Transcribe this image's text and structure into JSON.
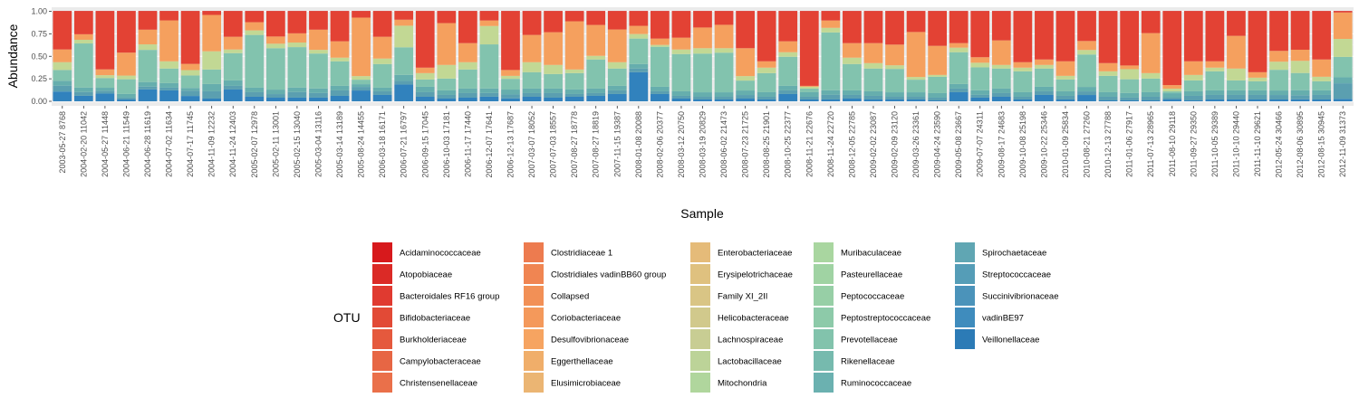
{
  "chart_data": {
    "type": "bar",
    "stacked": true,
    "xlabel": "Sample",
    "ylabel": "Abundance",
    "ylim": [
      0,
      1
    ],
    "yticks": [
      "0.00",
      "0.25",
      "0.50",
      "0.75",
      "1.00"
    ],
    "legend_title": "OTU",
    "legend_position": "bottom",
    "categories": [
      "2003-05-27 8768",
      "2004-02-20 11042",
      "2004-05-27 11448",
      "2004-06-21 11549",
      "2004-06-28 11619",
      "2004-07-02 11634",
      "2004-07-17 11745",
      "2004-11-09 12232",
      "2004-11-24 12403",
      "2005-02-07 12978",
      "2005-02-11 13001",
      "2005-02-15 13040",
      "2005-03-04 13116",
      "2005-03-14 13189",
      "2005-08-24 14455",
      "2006-03-18 16171",
      "2006-07-21 16797",
      "2006-09-15 17045",
      "2006-10-03 17181",
      "2006-11-17 17440",
      "2006-12-07 17641",
      "2006-12-13 17687",
      "2007-03-07 18052",
      "2007-07-03 18557",
      "2007-08-27 18778",
      "2007-08-27 18819",
      "2007-11-15 19387",
      "2008-01-08 20088",
      "2008-02-06 20377",
      "2008-03-12 20750",
      "2008-03-19 20829",
      "2008-06-02 21473",
      "2008-07-23 21725",
      "2008-08-25 21901",
      "2008-10-25 22377",
      "2008-11-21 22676",
      "2008-11-24 22720",
      "2008-12-05 22785",
      "2009-02-02 23087",
      "2009-02-09 23120",
      "2009-03-26 23361",
      "2009-04-24 23590",
      "2009-05-08 23667",
      "2009-07-07 24311",
      "2009-08-17 24683",
      "2009-10-08 25198",
      "2009-10-22 25346",
      "2010-01-09 25834",
      "2010-08-21 27260",
      "2010-12-13 27788",
      "2011-01-06 27917",
      "2011-07-13 28965",
      "2011-08-10 29118",
      "2011-09-27 29350",
      "2011-10-05 29389",
      "2011-10-10 29440",
      "2011-11-10 29621",
      "2012-05-24 30466",
      "2012-08-06 30895",
      "2012-08-15 30945",
      "2012-11-09 31373"
    ],
    "stack_order": [
      "veillonellaceae",
      "bacteroidales",
      "ruminococcaceae",
      "prevotellaceae",
      "lachnospiraceae",
      "collapsed",
      "bacteroidales_rf16"
    ],
    "series": [
      {
        "key": "veillonellaceae",
        "name": "Veillonellaceae",
        "color": "#3182bd",
        "values": [
          0.1,
          0.06,
          0.08,
          0.02,
          0.13,
          0.12,
          0.06,
          0.03,
          0.13,
          0.05,
          0.04,
          0.04,
          0.04,
          0.06,
          0.12,
          0.07,
          0.14,
          0.05,
          0.03,
          0.04,
          0.05,
          0.03,
          0.05,
          0.04,
          0.05,
          0.06,
          0.08,
          0.32,
          0.08,
          0.03,
          0.02,
          0.02,
          0.03,
          0.02,
          0.08,
          0.02,
          0.02,
          0.03,
          0.02,
          0.02,
          0.02,
          0.01,
          0.1,
          0.04,
          0.05,
          0.02,
          0.07,
          0.02,
          0.07,
          0.01,
          0.01,
          0.01,
          0.02,
          0.01,
          0.02,
          0.02,
          0.02,
          0.02,
          0.02,
          0.02,
          0.02
        ]
      },
      {
        "key": "bacteroidales",
        "name": "Spirochaetaceae",
        "color": "#5b9fb0",
        "values": [
          0.06,
          0.04,
          0.03,
          0.02,
          0.03,
          0.03,
          0.06,
          0.08,
          0.04,
          0.05,
          0.04,
          0.06,
          0.05,
          0.06,
          0.04,
          0.04,
          0.03,
          0.05,
          0.04,
          0.05,
          0.04,
          0.04,
          0.04,
          0.05,
          0.03,
          0.03,
          0.04,
          0.04,
          0.03,
          0.03,
          0.03,
          0.03,
          0.04,
          0.03,
          0.04,
          0.03,
          0.05,
          0.04,
          0.04,
          0.03,
          0.03,
          0.03,
          0.04,
          0.03,
          0.04,
          0.03,
          0.04,
          0.04,
          0.04,
          0.04,
          0.03,
          0.04,
          0.02,
          0.05,
          0.05,
          0.05,
          0.05,
          0.05,
          0.04,
          0.05,
          0.13
        ]
      },
      {
        "key": "ruminococcaceae",
        "name": "Ruminococcaceae",
        "color": "#66aead",
        "values": [
          0.05,
          0.05,
          0.03,
          0.04,
          0.05,
          0.05,
          0.03,
          0.08,
          0.06,
          0.05,
          0.05,
          0.05,
          0.05,
          0.05,
          0.03,
          0.04,
          0.05,
          0.06,
          0.05,
          0.05,
          0.05,
          0.05,
          0.05,
          0.05,
          0.05,
          0.05,
          0.05,
          0.05,
          0.05,
          0.05,
          0.05,
          0.05,
          0.05,
          0.05,
          0.05,
          0.05,
          0.05,
          0.05,
          0.05,
          0.05,
          0.05,
          0.05,
          0.05,
          0.05,
          0.05,
          0.05,
          0.05,
          0.05,
          0.05,
          0.05,
          0.05,
          0.05,
          0.05,
          0.05,
          0.05,
          0.05,
          0.05,
          0.05,
          0.05,
          0.05,
          0.05
        ]
      },
      {
        "key": "prevotellaceae",
        "name": "Prevotellaceae",
        "color": "#82c3ae",
        "values": [
          0.11,
          0.48,
          0.1,
          0.16,
          0.35,
          0.16,
          0.14,
          0.16,
          0.3,
          0.58,
          0.46,
          0.44,
          0.38,
          0.27,
          0.05,
          0.26,
          0.23,
          0.08,
          0.13,
          0.21,
          0.48,
          0.11,
          0.18,
          0.16,
          0.18,
          0.32,
          0.19,
          0.28,
          0.44,
          0.41,
          0.43,
          0.44,
          0.11,
          0.21,
          0.32,
          0.04,
          0.63,
          0.29,
          0.25,
          0.26,
          0.14,
          0.18,
          0.35,
          0.25,
          0.22,
          0.23,
          0.2,
          0.13,
          0.36,
          0.18,
          0.15,
          0.15,
          0.02,
          0.12,
          0.21,
          0.11,
          0.1,
          0.23,
          0.17,
          0.1,
          0.17
        ]
      },
      {
        "key": "lachnospiraceae",
        "name": "Lachnospiraceae",
        "color": "#c2d894",
        "values": [
          0.08,
          0.04,
          0.03,
          0.04,
          0.06,
          0.08,
          0.06,
          0.2,
          0.04,
          0.05,
          0.05,
          0.05,
          0.04,
          0.04,
          0.04,
          0.06,
          0.18,
          0.07,
          0.15,
          0.08,
          0.2,
          0.03,
          0.11,
          0.1,
          0.04,
          0.04,
          0.07,
          0.05,
          0.02,
          0.05,
          0.06,
          0.05,
          0.05,
          0.06,
          0.05,
          0.02,
          0.05,
          0.07,
          0.06,
          0.04,
          0.03,
          0.02,
          0.05,
          0.05,
          0.04,
          0.04,
          0.04,
          0.04,
          0.05,
          0.05,
          0.11,
          0.06,
          0.03,
          0.06,
          0.04,
          0.13,
          0.04,
          0.09,
          0.12,
          0.05,
          0.15
        ]
      },
      {
        "key": "collapsed",
        "name": "Collapsed",
        "color": "#f5a05e",
        "values": [
          0.13,
          0.06,
          0.06,
          0.25,
          0.16,
          0.45,
          0.07,
          0.4,
          0.14,
          0.09,
          0.08,
          0.1,
          0.22,
          0.18,
          0.65,
          0.24,
          0.05,
          0.06,
          0.46,
          0.21,
          0.06,
          0.06,
          0.3,
          0.36,
          0.53,
          0.34,
          0.36,
          0.09,
          0.07,
          0.13,
          0.23,
          0.26,
          0.31,
          0.07,
          0.12,
          0.01,
          0.08,
          0.16,
          0.22,
          0.23,
          0.5,
          0.32,
          0.05,
          0.06,
          0.27,
          0.06,
          0.06,
          0.16,
          0.1,
          0.09,
          0.04,
          0.44,
          0.04,
          0.15,
          0.07,
          0.36,
          0.06,
          0.12,
          0.11,
          0.19,
          0.22
        ]
      },
      {
        "key": "bacteroidales_rf16",
        "name": "Bacteroidales RF16 group",
        "color": "#e34234",
        "values": [
          0.39,
          0.25,
          0.6,
          0.45,
          0.2,
          0.1,
          0.59,
          0.04,
          0.28,
          0.12,
          0.28,
          0.24,
          0.2,
          0.33,
          0.07,
          0.28,
          0.07,
          0.62,
          0.13,
          0.35,
          0.1,
          0.6,
          0.26,
          0.23,
          0.11,
          0.15,
          0.2,
          0.16,
          0.3,
          0.29,
          0.18,
          0.15,
          0.41,
          0.55,
          0.33,
          0.82,
          0.1,
          0.35,
          0.35,
          0.37,
          0.23,
          0.38,
          0.35,
          0.5,
          0.32,
          0.56,
          0.53,
          0.55,
          0.33,
          0.57,
          0.59,
          0.24,
          0.82,
          0.55,
          0.55,
          0.27,
          0.67,
          0.44,
          0.38,
          0.53,
          0.01
        ]
      }
    ],
    "legend": [
      {
        "name": "Acidaminococcaceae",
        "color": "#d7191c"
      },
      {
        "name": "Atopobiaceae",
        "color": "#db2a26"
      },
      {
        "name": "Bacteroidales RF16 group",
        "color": "#e03a30"
      },
      {
        "name": "Bifidobacteriaceae",
        "color": "#e24a36"
      },
      {
        "name": "Burkholderiaceae",
        "color": "#e5593d"
      },
      {
        "name": "Campylobacteraceae",
        "color": "#e76644"
      },
      {
        "name": "Christensenellaceae",
        "color": "#ea704a"
      },
      {
        "name": "Clostridiaceae 1",
        "color": "#ed7b4f"
      },
      {
        "name": "Clostridiales vadinBB60 group",
        "color": "#f08552"
      },
      {
        "name": "Collapsed",
        "color": "#f29056"
      },
      {
        "name": "Coriobacteriaceae",
        "color": "#f4995b"
      },
      {
        "name": "Desulfovibrionaceae",
        "color": "#f6a461"
      },
      {
        "name": "Eggerthellaceae",
        "color": "#f0ae6a"
      },
      {
        "name": "Elusimicrobiaceae",
        "color": "#ebb573"
      },
      {
        "name": "Enterobacteriaceae",
        "color": "#e5bb79"
      },
      {
        "name": "Erysipelotrichaceae",
        "color": "#dfc17f"
      },
      {
        "name": "Family XI_2II",
        "color": "#d9c585"
      },
      {
        "name": "Helicobacteraceae",
        "color": "#d1c98c"
      },
      {
        "name": "Lachnospiraceae",
        "color": "#c8cd93"
      },
      {
        "name": "Lactobacillaceae",
        "color": "#bcd398"
      },
      {
        "name": "Mitochondria",
        "color": "#b0d69d"
      },
      {
        "name": "Muribaculaceae",
        "color": "#a9d6a0"
      },
      {
        "name": "Pasteurellaceae",
        "color": "#a0d3a3"
      },
      {
        "name": "Peptococcaceae",
        "color": "#97cfa6"
      },
      {
        "name": "Peptostreptococcaceae",
        "color": "#8dcaa9"
      },
      {
        "name": "Prevotellaceae",
        "color": "#82c3ac"
      },
      {
        "name": "Rikenellaceae",
        "color": "#76baae"
      },
      {
        "name": "Ruminococcaceae",
        "color": "#6bb1b0"
      },
      {
        "name": "Spirochaetaceae",
        "color": "#60a6b3"
      },
      {
        "name": "Streptococcaceae",
        "color": "#559db7"
      },
      {
        "name": "Succinivibrionaceae",
        "color": "#4b93ba"
      },
      {
        "name": "vadinBE97",
        "color": "#3f8cbd"
      },
      {
        "name": "Veillonellaceae",
        "color": "#2c7bb6"
      }
    ],
    "grid": true,
    "panel_background": "#ebebeb"
  }
}
